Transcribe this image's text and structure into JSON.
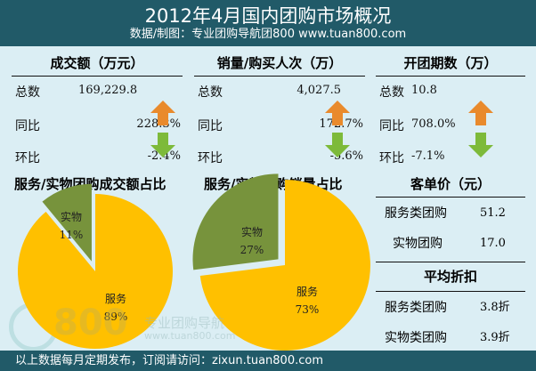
{
  "header": {
    "title": "2012年4月国内团购市场概况",
    "subtitle": "数据/制图：专业团购导航团800    www.tuan800.com"
  },
  "panels": [
    {
      "title": "成交额（万元）",
      "total_label": "总数",
      "total": "169,229.8",
      "yoy_label": "同比",
      "yoy": "228.3%",
      "mom_label": "环比",
      "mom": "-2.4%"
    },
    {
      "title": "销量/购买人次（万）",
      "total_label": "总数",
      "total": "4,027.5",
      "yoy_label": "同比",
      "yoy": "172.7%",
      "mom_label": "环比",
      "mom": "-5.6%"
    },
    {
      "title": "开团期数（万）",
      "total_label": "总数",
      "total": "10.8",
      "yoy_label": "同比",
      "yoy": "708.0%",
      "mom_label": "环比",
      "mom": "-7.1%"
    }
  ],
  "price": {
    "title": "客单价（元）",
    "rows": [
      {
        "label": "服务类团购",
        "value": "51.2"
      },
      {
        "label": "实物团购",
        "value": "17.0"
      }
    ]
  },
  "discount": {
    "title": "平均折扣",
    "rows": [
      {
        "label": "服务类团购",
        "value": "3.8折"
      },
      {
        "label": "实物类团购",
        "value": "3.9折"
      }
    ]
  },
  "watermark": {
    "logo": "800",
    "text": "专业团购导航",
    "url": "www.tuan800.com"
  },
  "footer": "以上数据每月定期发布，订阅请访问：zixun.tuan800.com",
  "colors": {
    "service": "#ffc000",
    "goods": "#77933c",
    "up": "#e98a2c",
    "down": "#7dba3a"
  },
  "chart_data": [
    {
      "type": "pie",
      "title": "服务/实物团购成交额占比",
      "slices": [
        {
          "label": "服务",
          "value": 89,
          "text": "89%"
        },
        {
          "label": "实物",
          "value": 11,
          "text": "11%"
        }
      ]
    },
    {
      "type": "pie",
      "title": "服务/实物团购销量占比",
      "slices": [
        {
          "label": "服务",
          "value": 73,
          "text": "73%"
        },
        {
          "label": "实物",
          "value": 27,
          "text": "27%"
        }
      ]
    }
  ]
}
